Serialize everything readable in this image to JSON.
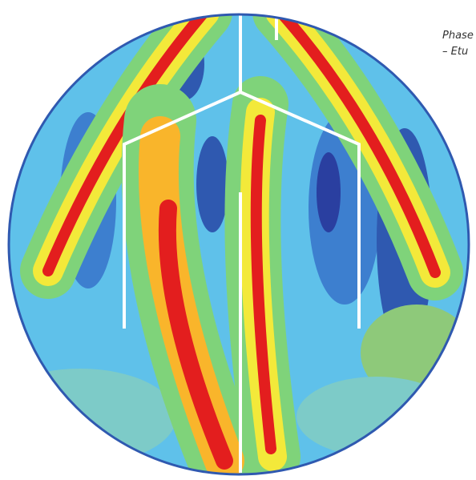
{
  "caption": [
    "Phase",
    "– Etu"
  ]
}
